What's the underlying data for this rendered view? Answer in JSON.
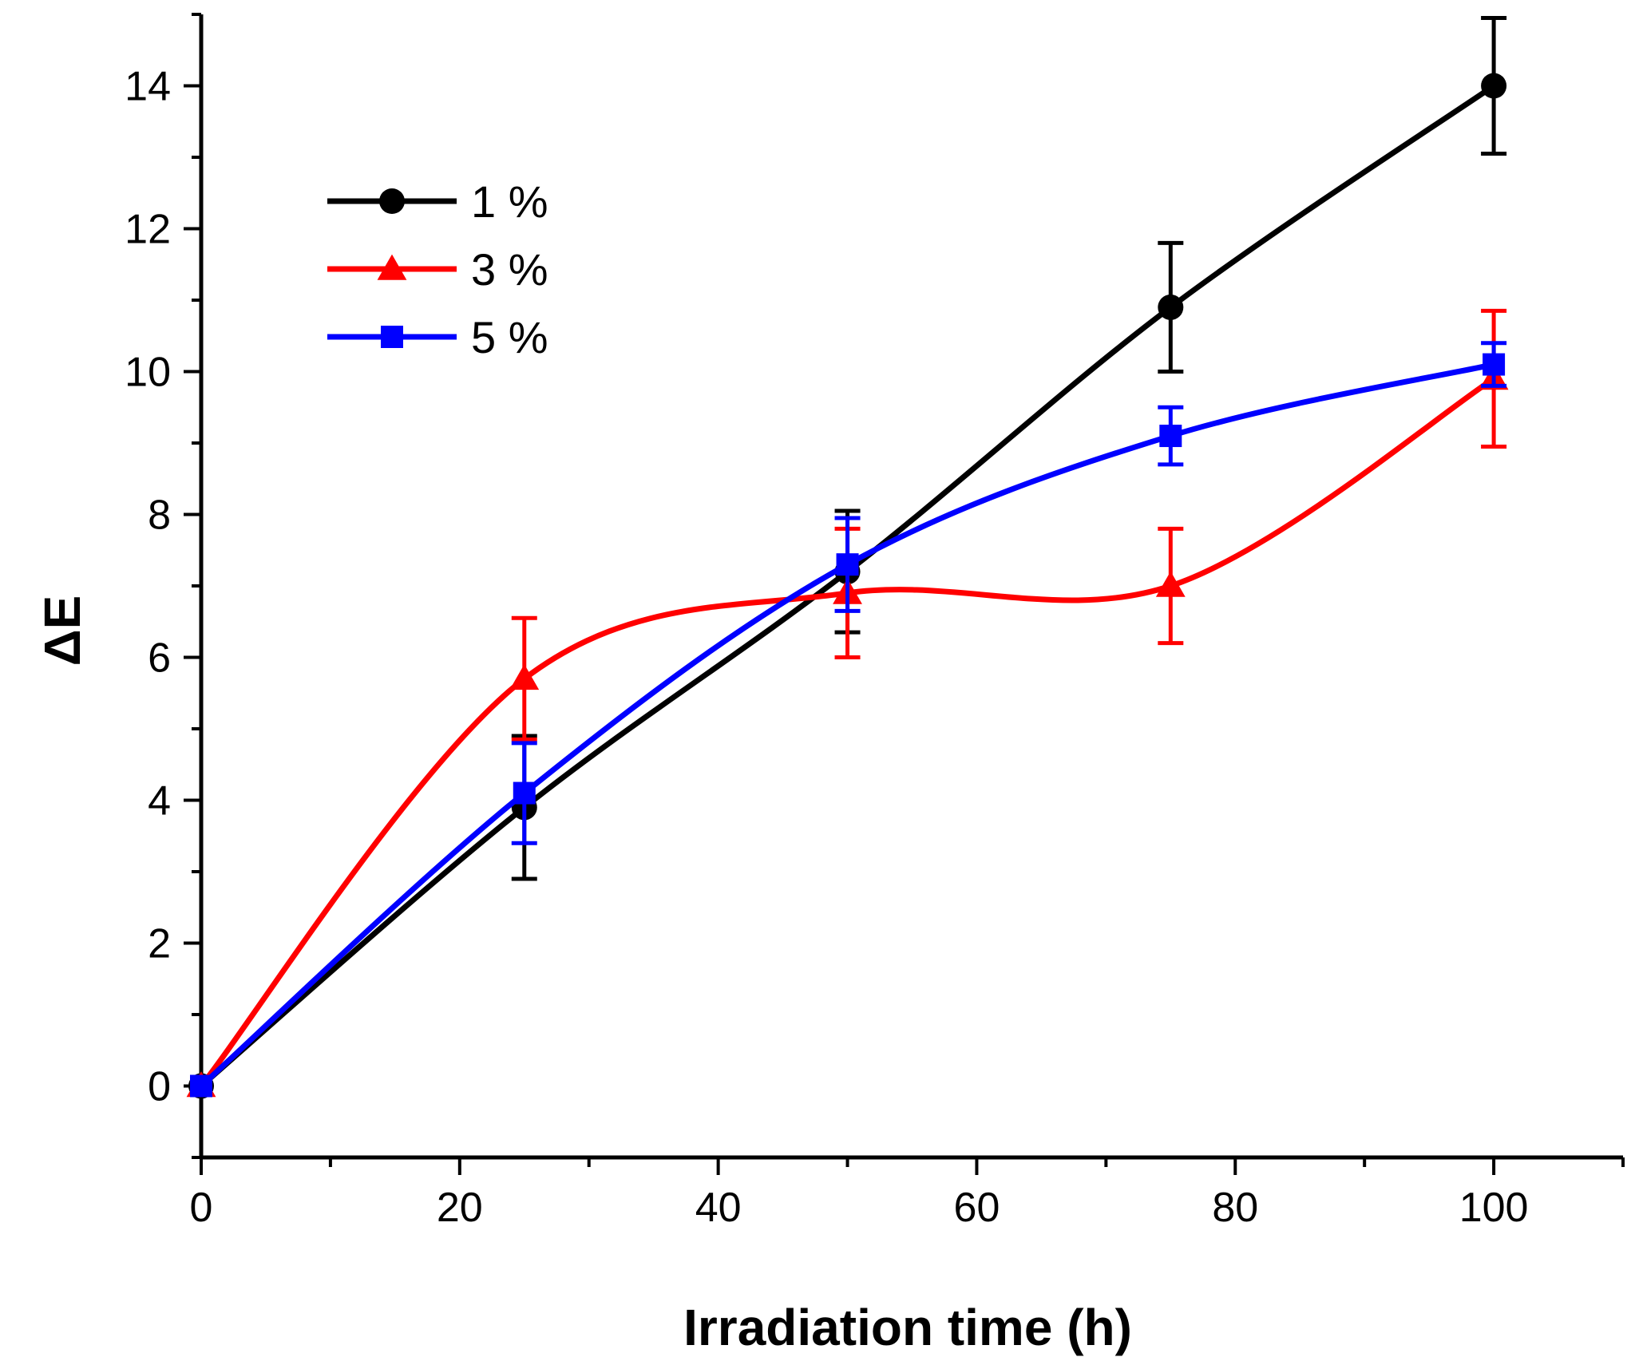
{
  "chart_data": {
    "type": "line",
    "title": "",
    "xlabel": "Irradiation time (h)",
    "ylabel": "ΔE",
    "xlim": [
      0,
      110
    ],
    "ylim": [
      -1,
      15
    ],
    "x_ticks": [
      0,
      20,
      40,
      60,
      80,
      100
    ],
    "y_ticks": [
      0,
      2,
      4,
      6,
      8,
      10,
      12,
      14
    ],
    "x_minor_step": 10,
    "y_minor_step": 1,
    "grid": false,
    "legend_position": "top-left",
    "series": [
      {
        "name": "1 %",
        "color": "#000000",
        "marker": "circle",
        "x": [
          0,
          25,
          50,
          75,
          100
        ],
        "values": [
          0,
          3.9,
          7.2,
          10.9,
          14.0
        ],
        "errors": [
          0,
          1.0,
          0.85,
          0.9,
          0.95
        ]
      },
      {
        "name": "3 %",
        "color": "#ff0000",
        "marker": "triangle",
        "x": [
          0,
          25,
          50,
          75,
          100
        ],
        "values": [
          0,
          5.7,
          6.9,
          7.0,
          9.9
        ],
        "errors": [
          0,
          0.85,
          0.9,
          0.8,
          0.95
        ]
      },
      {
        "name": "5 %",
        "color": "#0000ff",
        "marker": "square",
        "x": [
          0,
          25,
          50,
          75,
          100
        ],
        "values": [
          0,
          4.1,
          7.3,
          9.1,
          10.1
        ],
        "errors": [
          0,
          0.7,
          0.65,
          0.4,
          0.3
        ]
      }
    ]
  }
}
